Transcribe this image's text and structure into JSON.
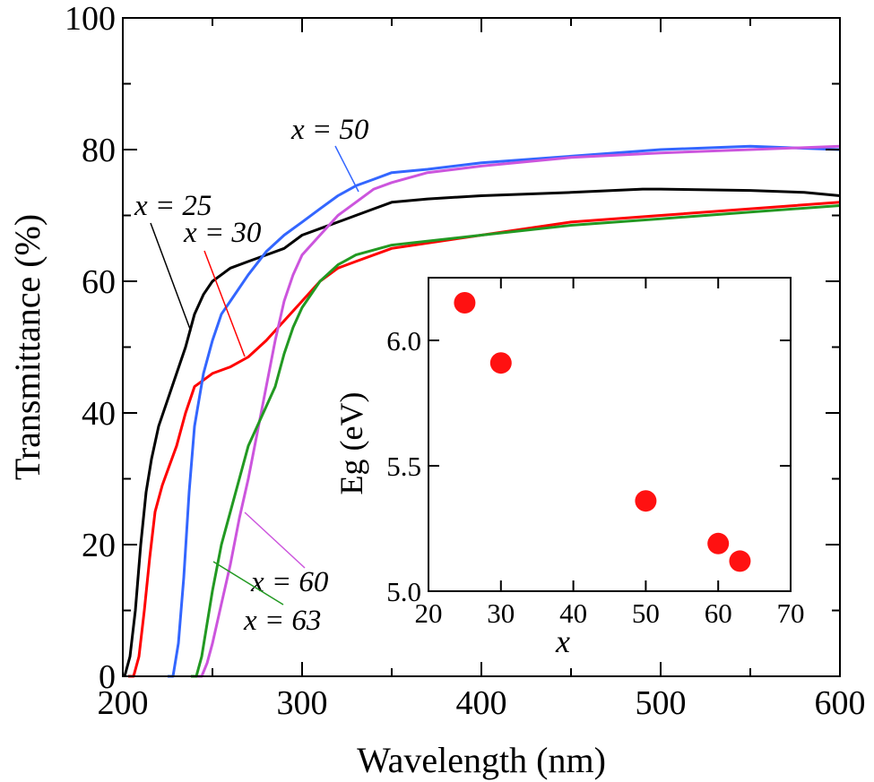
{
  "chart_data": [
    {
      "type": "line",
      "xlabel": "Wavelength (nm)",
      "ylabel": "Transmittance (%)",
      "xlim": [
        200,
        600
      ],
      "ylim": [
        0,
        100
      ],
      "xticks": [
        "200",
        "300",
        "400",
        "500",
        "600"
      ],
      "yticks": [
        "0",
        "20",
        "40",
        "60",
        "80",
        "100"
      ],
      "grid": false,
      "series": [
        {
          "name": "x = 25",
          "color": "#000000",
          "label_text": "x = 25",
          "points": [
            [
              201,
              0
            ],
            [
              204,
              3
            ],
            [
              207,
              10
            ],
            [
              210,
              20
            ],
            [
              213,
              28
            ],
            [
              216,
              33
            ],
            [
              220,
              38
            ],
            [
              225,
              42
            ],
            [
              230,
              46
            ],
            [
              235,
              50
            ],
            [
              240,
              55
            ],
            [
              245,
              58
            ],
            [
              250,
              60
            ],
            [
              255,
              61
            ],
            [
              260,
              62
            ],
            [
              270,
              63
            ],
            [
              280,
              64
            ],
            [
              290,
              65
            ],
            [
              300,
              67
            ],
            [
              310,
              68
            ],
            [
              320,
              69
            ],
            [
              330,
              70
            ],
            [
              340,
              71
            ],
            [
              350,
              72
            ],
            [
              370,
              72.5
            ],
            [
              400,
              73
            ],
            [
              450,
              73.5
            ],
            [
              490,
              74
            ],
            [
              500,
              74
            ],
            [
              550,
              73.8
            ],
            [
              580,
              73.5
            ],
            [
              600,
              73
            ]
          ]
        },
        {
          "name": "x = 30",
          "color": "#ff0000",
          "label_text": "x = 30",
          "points": [
            [
              203,
              0
            ],
            [
              206,
              0
            ],
            [
              209,
              3
            ],
            [
              212,
              10
            ],
            [
              215,
              18
            ],
            [
              218,
              25
            ],
            [
              222,
              29
            ],
            [
              226,
              32
            ],
            [
              230,
              35
            ],
            [
              235,
              40
            ],
            [
              240,
              44
            ],
            [
              245,
              45
            ],
            [
              250,
              46
            ],
            [
              260,
              47
            ],
            [
              270,
              48.5
            ],
            [
              280,
              51
            ],
            [
              290,
              54
            ],
            [
              300,
              57
            ],
            [
              310,
              60
            ],
            [
              320,
              62
            ],
            [
              330,
              63
            ],
            [
              350,
              65
            ],
            [
              400,
              67
            ],
            [
              450,
              69
            ],
            [
              500,
              70
            ],
            [
              550,
              71
            ],
            [
              600,
              72
            ]
          ]
        },
        {
          "name": "x = 50",
          "color": "#3366ff",
          "label_text": "x = 50",
          "points": [
            [
              225,
              0
            ],
            [
              228,
              0
            ],
            [
              231,
              5
            ],
            [
              234,
              15
            ],
            [
              237,
              28
            ],
            [
              240,
              38
            ],
            [
              245,
              46
            ],
            [
              250,
              51
            ],
            [
              255,
              55
            ],
            [
              260,
              57
            ],
            [
              270,
              61
            ],
            [
              280,
              64.5
            ],
            [
              290,
              67
            ],
            [
              300,
              69
            ],
            [
              310,
              71
            ],
            [
              320,
              73
            ],
            [
              330,
              74.5
            ],
            [
              340,
              75.5
            ],
            [
              350,
              76.5
            ],
            [
              370,
              77
            ],
            [
              400,
              78
            ],
            [
              450,
              79
            ],
            [
              500,
              80
            ],
            [
              550,
              80.5
            ],
            [
              600,
              80
            ]
          ]
        },
        {
          "name": "x = 60",
          "color": "#cc55dd",
          "label_text": "x = 60",
          "points": [
            [
              240,
              0
            ],
            [
              244,
              0
            ],
            [
              247,
              2
            ],
            [
              250,
              5
            ],
            [
              255,
              11
            ],
            [
              260,
              17
            ],
            [
              265,
              24
            ],
            [
              270,
              30
            ],
            [
              275,
              37
            ],
            [
              280,
              44
            ],
            [
              285,
              51
            ],
            [
              290,
              57
            ],
            [
              295,
              61
            ],
            [
              300,
              64
            ],
            [
              310,
              67
            ],
            [
              320,
              70
            ],
            [
              330,
              72
            ],
            [
              340,
              74
            ],
            [
              350,
              75
            ],
            [
              370,
              76.5
            ],
            [
              400,
              77.5
            ],
            [
              450,
              78.8
            ],
            [
              500,
              79.5
            ],
            [
              550,
              80
            ],
            [
              600,
              80.5
            ]
          ]
        },
        {
          "name": "x = 63",
          "color": "#229922",
          "label_text": "x = 63",
          "points": [
            [
              238,
              0
            ],
            [
              241,
              0
            ],
            [
              244,
              3
            ],
            [
              247,
              8
            ],
            [
              250,
              13
            ],
            [
              255,
              20
            ],
            [
              260,
              25
            ],
            [
              265,
              30
            ],
            [
              270,
              35
            ],
            [
              275,
              38
            ],
            [
              280,
              41
            ],
            [
              285,
              44
            ],
            [
              290,
              49
            ],
            [
              295,
              53
            ],
            [
              300,
              56
            ],
            [
              310,
              60
            ],
            [
              320,
              62.5
            ],
            [
              330,
              64
            ],
            [
              350,
              65.5
            ],
            [
              400,
              67
            ],
            [
              450,
              68.5
            ],
            [
              500,
              69.5
            ],
            [
              550,
              70.5
            ],
            [
              600,
              71.5
            ]
          ]
        }
      ]
    },
    {
      "type": "scatter",
      "xlabel": "x",
      "ylabel": "Eg (eV)",
      "xlim": [
        20,
        70
      ],
      "ylim": [
        5.0,
        6.25
      ],
      "xticks": [
        "20",
        "30",
        "40",
        "50",
        "60",
        "70"
      ],
      "yticks": [
        "5.0",
        "5.5",
        "6.0"
      ],
      "color": "#ff1111",
      "x": [
        25,
        30,
        50,
        60,
        63
      ],
      "y": [
        6.15,
        5.91,
        5.36,
        5.19,
        5.12
      ]
    }
  ]
}
